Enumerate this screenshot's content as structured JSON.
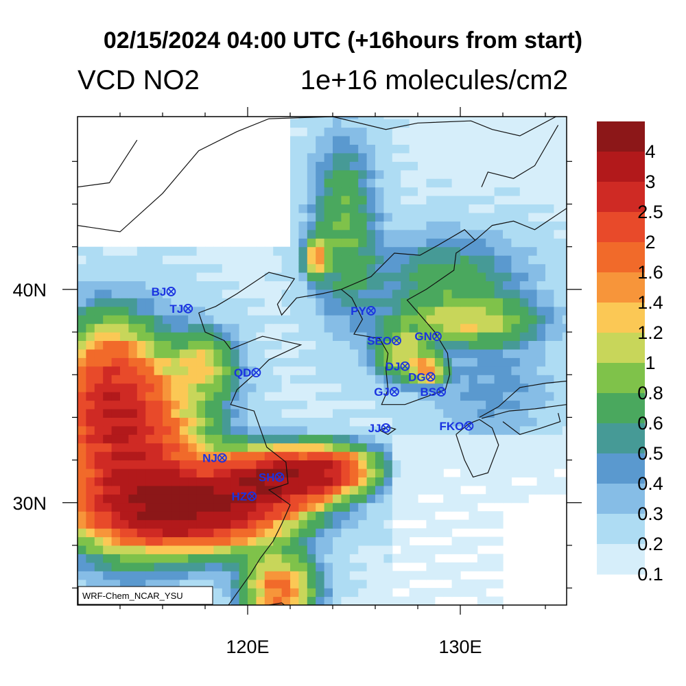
{
  "title": "02/15/2024 04:00 UTC (+16hours from start)",
  "variable": "VCD NO2",
  "units": "1e+16 molecules/cm2",
  "credit": "WRF-Chem_NCAR_YSU",
  "colorbar": {
    "labels": [
      "4",
      "3",
      "2.5",
      "2",
      "1.6",
      "1.4",
      "1.2",
      "1",
      "0.8",
      "0.6",
      "0.5",
      "0.4",
      "0.3",
      "0.2",
      "0.1"
    ],
    "colors": [
      "#8c1718",
      "#b2191b",
      "#cf2a24",
      "#e84a2a",
      "#f16a2a",
      "#f7953a",
      "#fbc855",
      "#c8d65a",
      "#7fc24a",
      "#4aa85e",
      "#469a96",
      "#5a99cf",
      "#86bde6",
      "#aedcf3",
      "#d6eefa"
    ]
  },
  "chart_data": {
    "type": "heatmap",
    "lon_ticks": [
      "120E",
      "130E"
    ],
    "lat_ticks": [
      "40N",
      "30N"
    ],
    "stations": [
      {
        "name": "BJ",
        "lon": 116.4,
        "lat": 39.9
      },
      {
        "name": "TJ",
        "lon": 117.2,
        "lat": 39.1
      },
      {
        "name": "QD",
        "lon": 120.4,
        "lat": 36.1
      },
      {
        "name": "NJ",
        "lon": 118.8,
        "lat": 32.1
      },
      {
        "name": "SH",
        "lon": 121.5,
        "lat": 31.2
      },
      {
        "name": "HZ",
        "lon": 120.2,
        "lat": 30.3
      },
      {
        "name": "PY",
        "lon": 125.8,
        "lat": 39.0
      },
      {
        "name": "SEO",
        "lon": 127.0,
        "lat": 37.6
      },
      {
        "name": "GN",
        "lon": 128.9,
        "lat": 37.8
      },
      {
        "name": "DJ",
        "lon": 127.4,
        "lat": 36.4
      },
      {
        "name": "DG",
        "lon": 128.6,
        "lat": 35.9
      },
      {
        "name": "GJ",
        "lon": 126.9,
        "lat": 35.2
      },
      {
        "name": "BS",
        "lon": 129.1,
        "lat": 35.2
      },
      {
        "name": "JJ",
        "lon": 126.5,
        "lat": 33.5
      },
      {
        "name": "FKO",
        "lon": 130.4,
        "lat": 33.6
      }
    ]
  }
}
